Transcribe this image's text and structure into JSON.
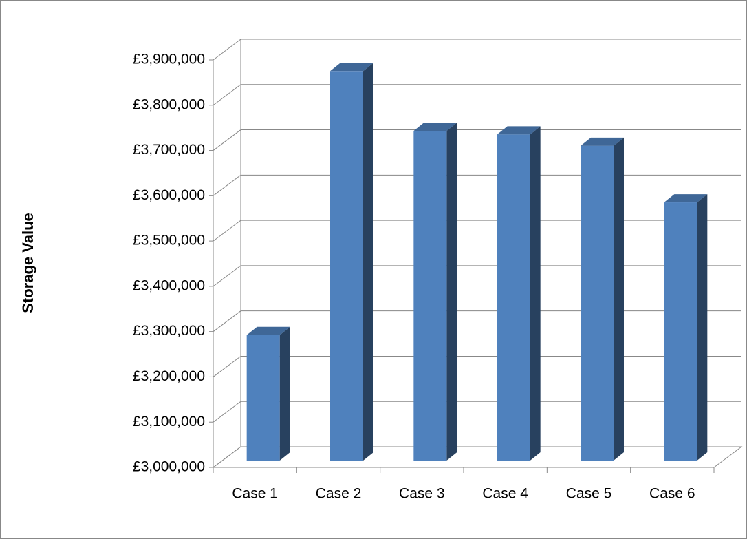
{
  "chart_data": {
    "type": "bar3d",
    "y_label": "Storage Value",
    "categories": [
      "Case 1",
      "Case 2",
      "Case 3",
      "Case 4",
      "Case 5",
      "Case 6"
    ],
    "values": [
      3277000,
      3860000,
      3728000,
      3720000,
      3695000,
      3570000
    ],
    "color": "#4f81bd",
    "ylim": [
      3000000,
      3900000
    ],
    "yticks": [
      {
        "value": 3000000,
        "label": "£3,000,000"
      },
      {
        "value": 3100000,
        "label": "£3,100,000"
      },
      {
        "value": 3200000,
        "label": "£3,200,000"
      },
      {
        "value": 3300000,
        "label": "£3,300,000"
      },
      {
        "value": 3400000,
        "label": "£3,400,000"
      },
      {
        "value": 3500000,
        "label": "£3,500,000"
      },
      {
        "value": 3600000,
        "label": "£3,600,000"
      },
      {
        "value": 3700000,
        "label": "£3,700,000"
      },
      {
        "value": 3800000,
        "label": "£3,800,000"
      },
      {
        "value": 3900000,
        "label": "£3,900,000"
      }
    ],
    "grid": true
  }
}
